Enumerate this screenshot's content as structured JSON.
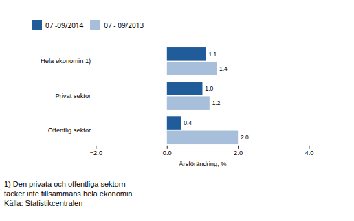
{
  "chart_data": {
    "type": "bar",
    "orientation": "horizontal",
    "categories": [
      "Offentlig sektor",
      "Privat sektor",
      "Hela ekonomin 1)"
    ],
    "series": [
      {
        "name": "07 -09/2014",
        "color": "#1f5c99",
        "values": [
          0.4,
          1.0,
          1.1
        ],
        "value_labels": [
          "0.4",
          "1.0",
          "1.1"
        ]
      },
      {
        "name": "07 - 09/2013",
        "color": "#a8bfdc",
        "values": [
          2.0,
          1.2,
          1.4
        ],
        "value_labels": [
          "2.0",
          "1.2",
          "1.4"
        ]
      }
    ],
    "xlabel": "Årsförändring, %",
    "xlim": [
      -2,
      4
    ],
    "xticks": [
      -2,
      0,
      2,
      4
    ],
    "data_labels": true,
    "legend": "upper left",
    "annotations": [
      "1) Den privata och offentliga sektorn",
      "täcker inte tillsammans hela ekonomin",
      "Källa: Statistikcentralen"
    ]
  }
}
